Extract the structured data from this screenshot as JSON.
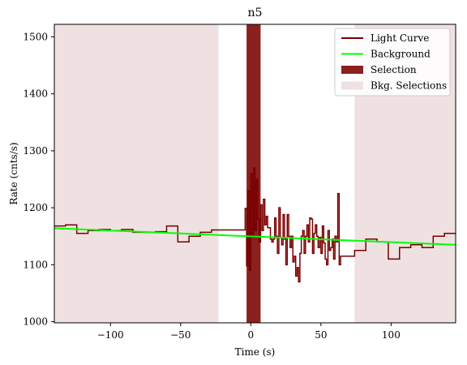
{
  "chart_data": {
    "type": "line",
    "title": "n5",
    "xlabel": "Time (s)",
    "ylabel": "Rate (cnts/s)",
    "xlim": [
      -140,
      146
    ],
    "ylim": [
      998,
      1522
    ],
    "xticks": [
      -100,
      -50,
      0,
      50,
      100
    ],
    "xtick_labels": [
      "−100",
      "−50",
      "0",
      "50",
      "100"
    ],
    "yticks": [
      1000,
      1100,
      1200,
      1300,
      1400,
      1500
    ],
    "ytick_labels": [
      "1000",
      "1100",
      "1200",
      "1300",
      "1400",
      "1500"
    ],
    "legend_position": "top-right",
    "legend": [
      {
        "label": "Light Curve",
        "kind": "line",
        "color": "#7a0000"
      },
      {
        "label": "Background",
        "kind": "line",
        "color": "#00ff00"
      },
      {
        "label": "Selection",
        "kind": "patch",
        "color": "#8b2020"
      },
      {
        "label": "Bkg. Selections",
        "kind": "patch",
        "color": "#efe1e1"
      }
    ],
    "colors": {
      "light_curve": "#7a0000",
      "background": "#00ff00",
      "selection": "#8b2020",
      "bkg_selection": "#efe1e1"
    },
    "background_line": {
      "x": [
        -140,
        146
      ],
      "y": [
        1164,
        1135
      ]
    },
    "selection_interval": [
      -3,
      7
    ],
    "bkg_selection_intervals": [
      [
        -140,
        -23
      ],
      [
        74,
        146
      ]
    ],
    "light_curve": {
      "x": [
        -140,
        -132,
        -124,
        -116,
        -108,
        -100,
        -92,
        -84,
        -76,
        -68,
        -60,
        -52,
        -44,
        -36,
        -28,
        -20,
        -12,
        -4,
        -4,
        -3,
        -2,
        -1,
        0,
        1,
        2,
        3,
        4,
        5,
        6,
        7,
        8,
        9,
        10,
        11,
        12,
        13,
        14,
        15,
        16,
        17,
        18,
        19,
        20,
        21,
        22,
        23,
        24,
        25,
        26,
        27,
        28,
        29,
        30,
        31,
        32,
        33,
        34,
        35,
        36,
        37,
        38,
        39,
        40,
        41,
        42,
        43,
        44,
        45,
        46,
        47,
        48,
        49,
        50,
        51,
        52,
        53,
        54,
        55,
        56,
        57,
        58,
        59,
        60,
        61,
        62,
        63,
        64,
        66,
        74,
        82,
        90,
        98,
        106,
        114,
        122,
        130,
        138,
        146
      ],
      "y": [
        1168,
        1170,
        1155,
        1160,
        1162,
        1160,
        1162,
        1157,
        1157,
        1158,
        1168,
        1140,
        1150,
        1157,
        1161,
        1161,
        1161,
        1161,
        1199,
        1098,
        1230,
        1090,
        1260,
        1150,
        1270,
        1160,
        1250,
        1180,
        1140,
        1205,
        1160,
        1215,
        1170,
        1185,
        1165,
        1165,
        1145,
        1140,
        1145,
        1182,
        1150,
        1120,
        1200,
        1148,
        1135,
        1188,
        1145,
        1100,
        1188,
        1150,
        1130,
        1150,
        1105,
        1115,
        1080,
        1095,
        1070,
        1120,
        1150,
        1160,
        1120,
        1150,
        1170,
        1140,
        1182,
        1180,
        1120,
        1155,
        1170,
        1150,
        1130,
        1148,
        1120,
        1168,
        1138,
        1110,
        1100,
        1160,
        1125,
        1130,
        1145,
        1110,
        1150,
        1140,
        1225,
        1100,
        1115,
        1115,
        1125,
        1145,
        1140,
        1110,
        1130,
        1135,
        1130,
        1150,
        1155,
        1155
      ]
    }
  }
}
